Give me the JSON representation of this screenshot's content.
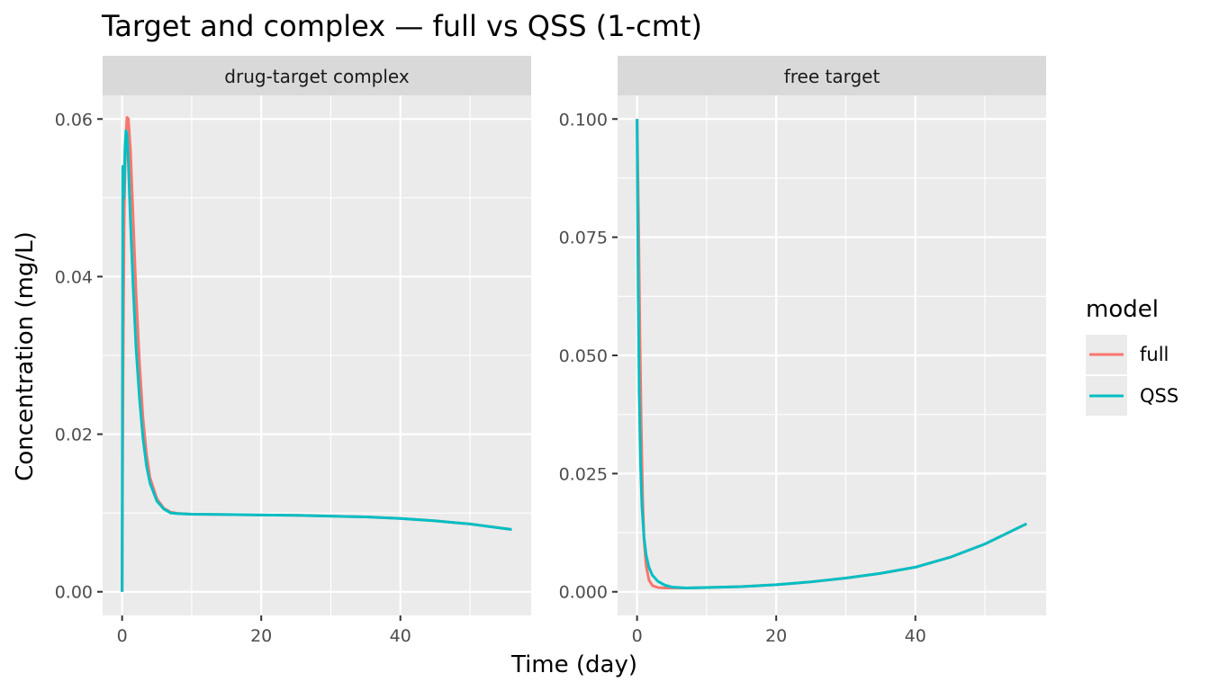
{
  "chart_data": {
    "type": "line",
    "title": "Target and complex — full vs QSS (1-cmt)",
    "xlabel": "Time (day)",
    "ylabel": "Concentration (mg/L)",
    "legend": {
      "title": "model",
      "placement": "right",
      "entries": [
        {
          "name": "full",
          "color": "#F8766D"
        },
        {
          "name": "QSS",
          "color": "#00BFC4"
        }
      ]
    },
    "grid": true,
    "panels": [
      {
        "strip": "drug-target complex",
        "xlim": [
          -2.8,
          58.8
        ],
        "ylim": [
          -0.003,
          0.063
        ],
        "x_ticks": [
          0,
          20,
          40
        ],
        "x_tick_labels": [
          "0",
          "20",
          "40"
        ],
        "y_ticks": [
          0,
          0.02,
          0.04,
          0.06
        ],
        "y_tick_labels": [
          "0.00",
          "0.02",
          "0.04",
          "0.06"
        ],
        "series": [
          {
            "name": "full",
            "x": [
              0,
              0.05,
              0.15,
              0.3,
              0.5,
              0.7,
              0.9,
              1.2,
              1.6,
              2.0,
              2.5,
              3.0,
              3.5,
              4.0,
              5.0,
              6.0,
              7.0,
              8.0,
              10,
              15,
              20,
              25,
              30,
              35,
              40,
              45,
              50,
              56
            ],
            "y": [
              0,
              0.012,
              0.03,
              0.048,
              0.057,
              0.0602,
              0.06,
              0.056,
              0.047,
              0.038,
              0.029,
              0.022,
              0.0175,
              0.0145,
              0.0118,
              0.0106,
              0.0101,
              0.00995,
              0.00985,
              0.0098,
              0.00975,
              0.0097,
              0.0096,
              0.0095,
              0.0093,
              0.009,
              0.0086,
              0.0079
            ]
          },
          {
            "name": "QSS",
            "x": [
              0,
              0.1,
              0.25,
              0.4,
              0.55,
              0.7,
              0.9,
              1.2,
              1.6,
              2.0,
              2.5,
              3.0,
              3.5,
              4.0,
              5.0,
              6.0,
              7.0,
              8.0,
              10,
              15,
              20,
              25,
              30,
              35,
              40,
              45,
              50,
              56
            ],
            "y": [
              0,
              0.054,
              0.05,
              0.056,
              0.0585,
              0.058,
              0.0545,
              0.047,
              0.0385,
              0.031,
              0.0245,
              0.0195,
              0.016,
              0.0138,
              0.0115,
              0.0105,
              0.01,
              0.00992,
              0.00985,
              0.0098,
              0.00975,
              0.0097,
              0.0096,
              0.0095,
              0.0093,
              0.009,
              0.0086,
              0.0079
            ]
          }
        ]
      },
      {
        "strip": "free target",
        "xlim": [
          -2.8,
          58.8
        ],
        "ylim": [
          -0.005,
          0.105
        ],
        "x_ticks": [
          0,
          20,
          40
        ],
        "x_tick_labels": [
          "0",
          "20",
          "40"
        ],
        "y_ticks": [
          0,
          0.025,
          0.05,
          0.075,
          0.1
        ],
        "y_tick_labels": [
          "0.000",
          "0.025",
          "0.050",
          "0.075",
          "0.100"
        ],
        "series": [
          {
            "name": "full",
            "x": [
              0,
              0.2,
              0.4,
              0.6,
              0.8,
              1.0,
              1.3,
              1.7,
              2.2,
              3.0,
              4.0,
              5.0,
              7.0,
              10,
              15,
              20,
              25,
              30,
              35,
              40,
              45,
              50,
              56
            ],
            "y": [
              0.1,
              0.08,
              0.055,
              0.035,
              0.02,
              0.011,
              0.0055,
              0.0025,
              0.0013,
              0.0009,
              0.0008,
              0.0008,
              0.0008,
              0.0009,
              0.0011,
              0.0015,
              0.0021,
              0.0029,
              0.0039,
              0.0052,
              0.0073,
              0.0101,
              0.0144
            ]
          },
          {
            "name": "QSS",
            "x": [
              0,
              0.15,
              0.3,
              0.5,
              0.7,
              1.0,
              1.3,
              1.7,
              2.2,
              3.0,
              4.0,
              5.0,
              7.0,
              10,
              15,
              20,
              25,
              30,
              35,
              40,
              45,
              50,
              56
            ],
            "y": [
              0.1,
              0.065,
              0.042,
              0.027,
              0.018,
              0.0115,
              0.0078,
              0.0052,
              0.0035,
              0.0022,
              0.0014,
              0.001,
              0.0008,
              0.0009,
              0.0011,
              0.0015,
              0.0021,
              0.0029,
              0.0039,
              0.0052,
              0.0073,
              0.0101,
              0.0144
            ]
          }
        ]
      }
    ]
  }
}
